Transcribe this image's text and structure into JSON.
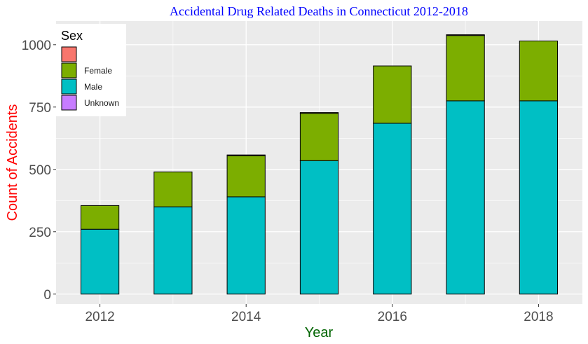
{
  "chart_data": {
    "type": "bar",
    "stacked": true,
    "title": "Accidental Drug Related Deaths in Connecticut 2012-2018",
    "xlabel": "Year",
    "ylabel": "Count of Accidents",
    "categories": [
      2012,
      2013,
      2014,
      2015,
      2016,
      2017,
      2018
    ],
    "x_ticks": [
      "2012",
      "2014",
      "2016",
      "2018"
    ],
    "y_ticks": [
      "0",
      "250",
      "500",
      "750",
      "1000"
    ],
    "ylim": [
      -40,
      1095
    ],
    "xlim": [
      2011.4,
      2018.6
    ],
    "grid": true,
    "legend_title": "Sex",
    "legend_position": "top-left",
    "series": [
      {
        "name": "",
        "color": "#F8766D",
        "values": [
          0,
          0,
          0,
          0,
          0,
          0,
          0
        ]
      },
      {
        "name": "Female",
        "color": "#7CAE00",
        "values": [
          95,
          140,
          165,
          190,
          230,
          262,
          240
        ]
      },
      {
        "name": "Male",
        "color": "#00BFC4",
        "values": [
          260,
          350,
          390,
          535,
          685,
          775,
          775
        ]
      },
      {
        "name": "Unknown",
        "color": "#C77CFF",
        "values": [
          0,
          0,
          3,
          3,
          0,
          3,
          0
        ]
      }
    ]
  }
}
